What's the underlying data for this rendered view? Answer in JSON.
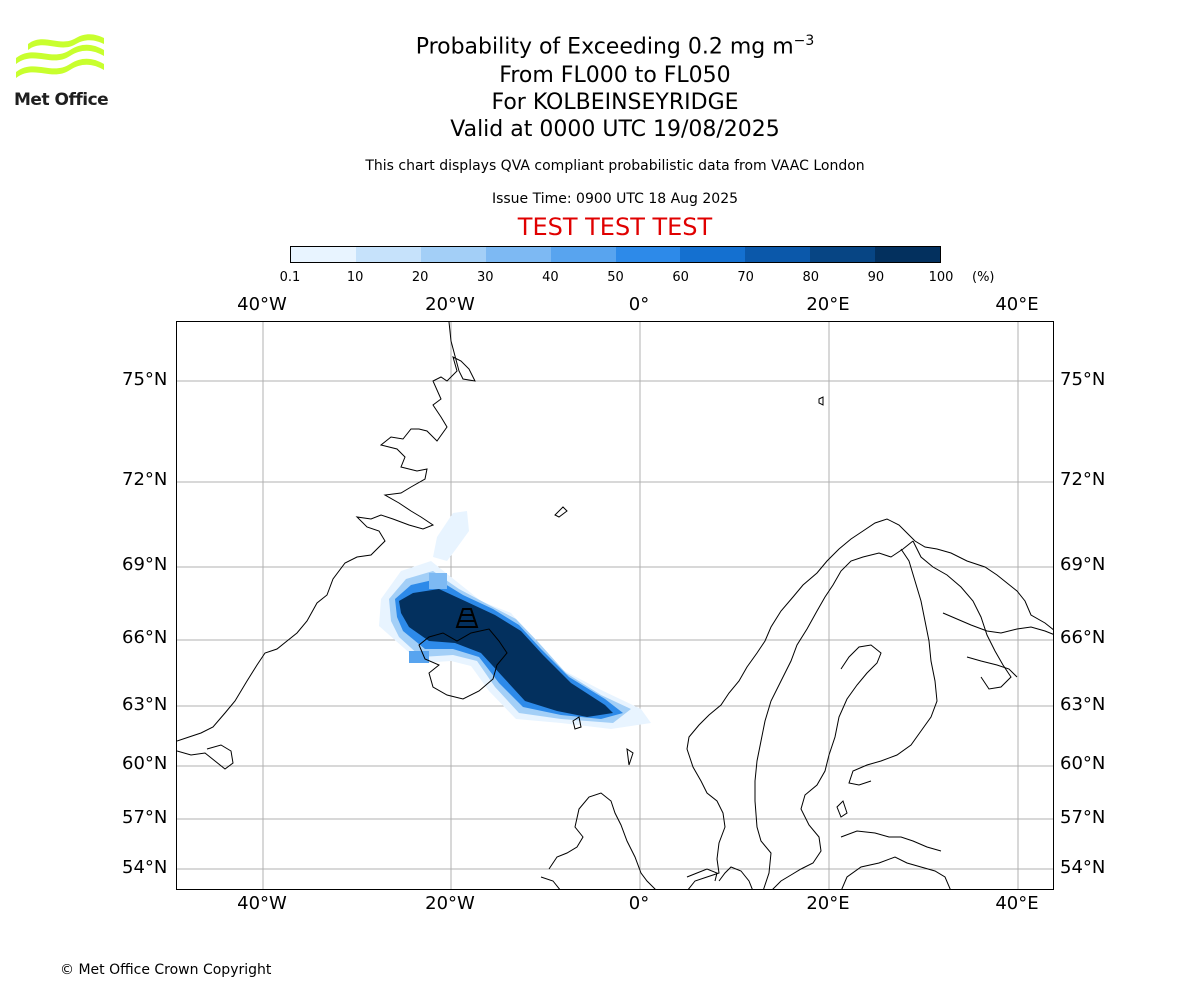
{
  "branding": {
    "logo_text": "Met Office",
    "logo_color": "#c8ff2e"
  },
  "header": {
    "title_main": "Probability of Exceeding 0.2 mg m",
    "title_exponent": "−3",
    "flight_levels": "From FL000 to FL050",
    "location": "For KOLBEINSEYRIDGE",
    "valid_time": "Valid at 0000 UTC 19/08/2025",
    "description": "This chart displays QVA compliant probabilistic data from VAAC London",
    "issue_time": "Issue Time: 0900 UTC 18 Aug 2025",
    "test_banner": "TEST TEST TEST",
    "test_color": "#e00000"
  },
  "colorbar": {
    "ticks": [
      "0.1",
      "10",
      "20",
      "30",
      "40",
      "50",
      "60",
      "70",
      "80",
      "90",
      "100"
    ],
    "unit": "(%)",
    "colors": [
      "#e8f4ff",
      "#c6e2fb",
      "#a3cff7",
      "#7db9f3",
      "#58a4ef",
      "#2d8ae9",
      "#1470d0",
      "#0b58aa",
      "#074584",
      "#03305e"
    ]
  },
  "map": {
    "lon_labels": [
      "40°W",
      "20°W",
      "0°",
      "20°E",
      "40°E"
    ],
    "lat_labels": [
      "75°N",
      "72°N",
      "69°N",
      "66°N",
      "63°N",
      "60°N",
      "57°N",
      "54°N"
    ],
    "gridline_color": "#b0b0b0",
    "volcano_marker": "volcano-symbol"
  },
  "footer": {
    "copyright": "© Met Office Crown Copyright"
  }
}
